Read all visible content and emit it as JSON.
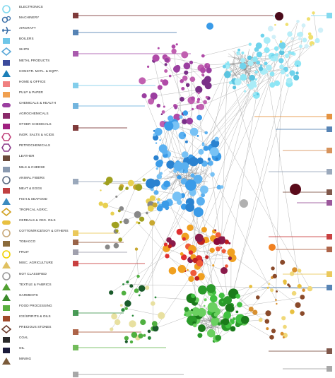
{
  "legend": {
    "items": [
      {
        "label": "ELECTRONICS",
        "color": "#7fd8ee",
        "icon": "electronics-icon"
      },
      {
        "label": "MACHINERY",
        "color": "#3a6fa8",
        "icon": "gear-icon"
      },
      {
        "label": "AIRCRAFT",
        "color": "#3a6fa8",
        "icon": "airplane-icon"
      },
      {
        "label": "BOILERS",
        "color": "#6fc6e8",
        "icon": "boiler-icon"
      },
      {
        "label": "SHIPS",
        "color": "#5aa8d8",
        "icon": "ship-icon"
      },
      {
        "label": "METAL PRODUCTS",
        "color": "#3b4a9c",
        "icon": "metal-icon"
      },
      {
        "label": "CONSTR. MATL. & EQPT.",
        "color": "#1b7fb8",
        "icon": "crane-icon"
      },
      {
        "label": "HOME & OFFICE",
        "color": "#f08080",
        "icon": "chair-icon"
      },
      {
        "label": "PULP & PAPER",
        "color": "#f0a050",
        "icon": "paper-icon"
      },
      {
        "label": "CHEMICALS & HEALTH",
        "color": "#9b3fa0",
        "icon": "pill-icon"
      },
      {
        "label": "AGROCHEMICALS",
        "color": "#8a2a6a",
        "icon": "tractor-icon"
      },
      {
        "label": "OTHER CHEMICALS",
        "color": "#a02080",
        "icon": "flask-icon"
      },
      {
        "label": "INOR. SALTS & ACIDS",
        "color": "#c0407a",
        "icon": "salt-icon"
      },
      {
        "label": "PETROCHEMICALS",
        "color": "#8a3a8a",
        "icon": "barrel-icon"
      },
      {
        "label": "LEATHER",
        "color": "#6b4a3a",
        "icon": "boot-icon"
      },
      {
        "label": "MILK & CHEESE",
        "color": "#8a9ab0",
        "icon": "milk-icon"
      },
      {
        "label": "ANIMAL FIBERS",
        "color": "#5a6a80",
        "icon": "sheep-icon"
      },
      {
        "label": "MEAT & EGGS",
        "color": "#c04040",
        "icon": "meat-icon"
      },
      {
        "label": "FISH & SEAFOOD",
        "color": "#3a8ac0",
        "icon": "fish-icon"
      },
      {
        "label": "TROPICAL AGRIC.",
        "color": "#d0a020",
        "icon": "banana-icon"
      },
      {
        "label": "CEREALS & VEG. OILS",
        "color": "#e8c040",
        "icon": "wheat-icon"
      },
      {
        "label": "COTTON/RICE/SOY & OTHERS",
        "color": "#c8a878",
        "icon": "cotton-icon"
      },
      {
        "label": "TOBACCO",
        "color": "#8a6a3a",
        "icon": "cigarette-icon"
      },
      {
        "label": "FRUIT",
        "color": "#f0d000",
        "icon": "fruit-icon"
      },
      {
        "label": "MISC. AGRICULTURE",
        "color": "#e0c060",
        "icon": "leaf-icon"
      },
      {
        "label": "NOT CLASSIFIED",
        "color": "#999999",
        "icon": "question-icon"
      },
      {
        "label": "TEXTILE & FABRICS",
        "color": "#50a030",
        "icon": "fabric-icon"
      },
      {
        "label": "GARMENTS",
        "color": "#3a8a2a",
        "icon": "shirt-icon"
      },
      {
        "label": "FOOD PROCESSING",
        "color": "#5ab040",
        "icon": "can-icon"
      },
      {
        "label": "ICE/SPIRITS & OILS",
        "color": "#a04a2a",
        "icon": "bottle-icon"
      },
      {
        "label": "PRECIOUS STONES",
        "color": "#6b3a2a",
        "icon": "gem-icon"
      },
      {
        "label": "COAL",
        "color": "#2a2a2a",
        "icon": "coal-icon"
      },
      {
        "label": "OIL",
        "color": "#1a1a3a",
        "icon": "oil-icon"
      },
      {
        "label": "MINING",
        "color": "#7a5a3a",
        "icon": "pickaxe-icon"
      }
    ]
  }
}
